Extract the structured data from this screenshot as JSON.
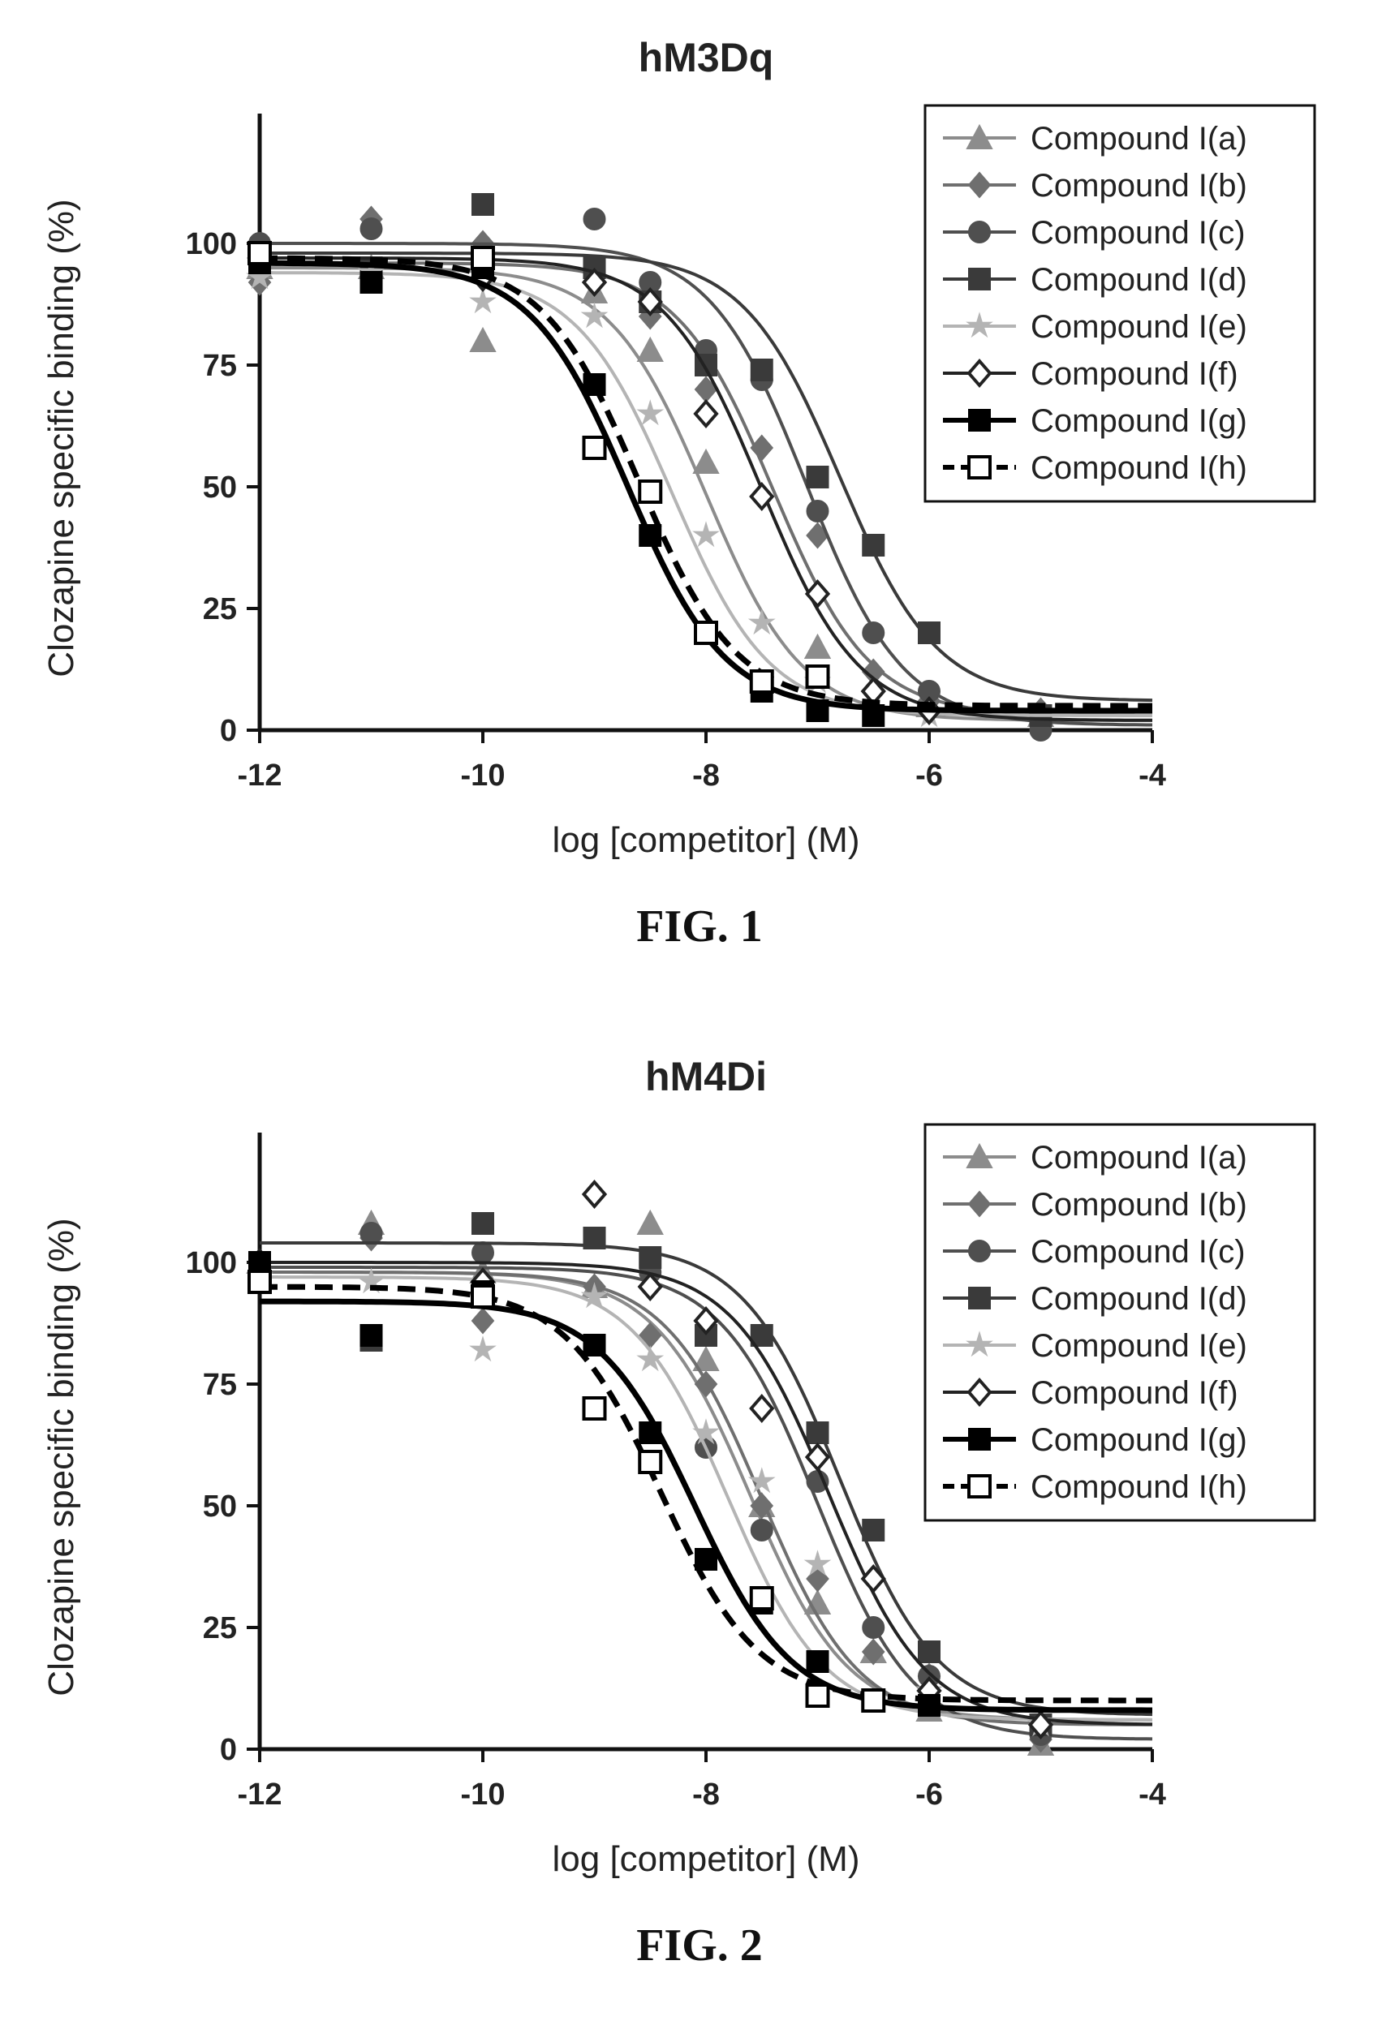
{
  "chart_data": [
    {
      "type": "line",
      "title": "hM3Dq",
      "xlabel": "log [competitor] (M)",
      "ylabel": "Clozapine specific binding (%)",
      "xlim": [
        -12,
        -4
      ],
      "ylim": [
        0,
        120
      ],
      "xticks": [
        -12,
        -10,
        -8,
        -6,
        -4
      ],
      "yticks": [
        0,
        25,
        50,
        75,
        100
      ],
      "grid": false,
      "legend": "top-right",
      "caption": "FIG. 1",
      "series": [
        {
          "name": "Compound I(a)",
          "color": "#8c8c8c",
          "marker": "triangle",
          "dash": "solid",
          "bottom": 2,
          "top": 95,
          "logIC50": -8.0,
          "hill": 1,
          "points": [
            [
              -12,
              95
            ],
            [
              -11,
              95
            ],
            [
              -10,
              80
            ],
            [
              -9,
              90
            ],
            [
              -8.5,
              78
            ],
            [
              -8,
              55
            ],
            [
              -7,
              17
            ],
            [
              -6,
              5
            ],
            [
              -5,
              3
            ]
          ]
        },
        {
          "name": "Compound I(b)",
          "color": "#6f6f6f",
          "marker": "diamond",
          "dash": "solid",
          "bottom": 3,
          "top": 96,
          "logIC50": -7.4,
          "hill": 1,
          "points": [
            [
              -12,
              92
            ],
            [
              -11,
              105
            ],
            [
              -10,
              100
            ],
            [
              -9,
              93
            ],
            [
              -8.5,
              85
            ],
            [
              -8,
              70
            ],
            [
              -7.5,
              58
            ],
            [
              -7,
              40
            ],
            [
              -6.5,
              12
            ],
            [
              -6,
              6
            ],
            [
              -5,
              4
            ]
          ]
        },
        {
          "name": "Compound I(c)",
          "color": "#4f4f4f",
          "marker": "circle",
          "dash": "solid",
          "bottom": 1,
          "top": 100,
          "logIC50": -7.1,
          "hill": 1,
          "points": [
            [
              -12,
              100
            ],
            [
              -11,
              103
            ],
            [
              -10,
              108
            ],
            [
              -9,
              105
            ],
            [
              -8.5,
              92
            ],
            [
              -8,
              78
            ],
            [
              -7.5,
              72
            ],
            [
              -7,
              45
            ],
            [
              -6.5,
              20
            ],
            [
              -6,
              8
            ],
            [
              -5,
              0
            ]
          ]
        },
        {
          "name": "Compound I(d)",
          "color": "#3a3a3a",
          "marker": "square",
          "dash": "solid",
          "bottom": 6,
          "top": 98,
          "logIC50": -6.8,
          "hill": 1,
          "points": [
            [
              -12,
              98
            ],
            [
              -11,
              95
            ],
            [
              -10,
              108
            ],
            [
              -9,
              95
            ],
            [
              -8.5,
              88
            ],
            [
              -8,
              75
            ],
            [
              -7.5,
              74
            ],
            [
              -7,
              52
            ],
            [
              -6.5,
              38
            ],
            [
              -6,
              20
            ],
            [
              -5,
              3
            ]
          ]
        },
        {
          "name": "Compound I(e)",
          "color": "#b4b4b4",
          "marker": "star",
          "dash": "solid",
          "bottom": 3,
          "top": 94,
          "logIC50": -8.3,
          "hill": 1,
          "points": [
            [
              -12,
              93
            ],
            [
              -11,
              94
            ],
            [
              -10,
              88
            ],
            [
              -9,
              85
            ],
            [
              -8.5,
              65
            ],
            [
              -8,
              40
            ],
            [
              -7.5,
              22
            ],
            [
              -7,
              10
            ],
            [
              -6,
              3
            ]
          ]
        },
        {
          "name": "Compound I(f)",
          "color": "#222222",
          "marker": "diamond-open",
          "dash": "solid",
          "bottom": 2,
          "top": 97,
          "logIC50": -7.5,
          "hill": 1,
          "points": [
            [
              -12,
              97
            ],
            [
              -10,
              93
            ],
            [
              -9,
              92
            ],
            [
              -8.5,
              88
            ],
            [
              -8,
              65
            ],
            [
              -7.5,
              48
            ],
            [
              -7,
              28
            ],
            [
              -6.5,
              8
            ],
            [
              -6,
              4
            ]
          ]
        },
        {
          "name": "Compound I(g)",
          "color": "#000000",
          "marker": "square",
          "dash": "solid",
          "bottom": 4,
          "top": 96,
          "logIC50": -8.7,
          "hill": 1,
          "points": [
            [
              -12,
              96
            ],
            [
              -11,
              92
            ],
            [
              -10,
              95
            ],
            [
              -9,
              71
            ],
            [
              -8.5,
              40
            ],
            [
              -8,
              20
            ],
            [
              -7.5,
              8
            ],
            [
              -7,
              4
            ],
            [
              -6.5,
              3
            ]
          ]
        },
        {
          "name": "Compound I(h)",
          "color": "#000000",
          "marker": "square-open",
          "dash": "dashed",
          "bottom": 5,
          "top": 97,
          "logIC50": -8.6,
          "hill": 1,
          "points": [
            [
              -12,
              98
            ],
            [
              -10,
              97
            ],
            [
              -9,
              58
            ],
            [
              -8.5,
              49
            ],
            [
              -8,
              20
            ],
            [
              -7.5,
              10
            ],
            [
              -7,
              11
            ]
          ]
        }
      ]
    },
    {
      "type": "line",
      "title": "hM4Di",
      "xlabel": "log [competitor] (M)",
      "ylabel": "Clozapine specific binding (%)",
      "xlim": [
        -12,
        -4
      ],
      "ylim": [
        0,
        120
      ],
      "xticks": [
        -12,
        -10,
        -8,
        -6,
        -4
      ],
      "yticks": [
        0,
        25,
        50,
        75,
        100
      ],
      "grid": false,
      "legend": "top-right",
      "caption": "FIG. 2",
      "series": [
        {
          "name": "Compound I(a)",
          "color": "#8c8c8c",
          "marker": "triangle",
          "dash": "solid",
          "bottom": 6,
          "top": 98,
          "logIC50": -7.6,
          "hill": 1,
          "points": [
            [
              -12,
              100
            ],
            [
              -11,
              108
            ],
            [
              -10,
              98
            ],
            [
              -9,
              95
            ],
            [
              -8.5,
              108
            ],
            [
              -8,
              80
            ],
            [
              -7.5,
              50
            ],
            [
              -7,
              30
            ],
            [
              -6.5,
              20
            ],
            [
              -6,
              8
            ],
            [
              -5,
              1
            ]
          ]
        },
        {
          "name": "Compound I(b)",
          "color": "#6f6f6f",
          "marker": "diamond",
          "dash": "solid",
          "bottom": 5,
          "top": 98,
          "logIC50": -7.5,
          "hill": 1,
          "points": [
            [
              -12,
              98
            ],
            [
              -11,
              105
            ],
            [
              -10,
              88
            ],
            [
              -9,
              95
            ],
            [
              -8.5,
              85
            ],
            [
              -8,
              75
            ],
            [
              -7.5,
              50
            ],
            [
              -7,
              35
            ],
            [
              -6.5,
              20
            ],
            [
              -6,
              15
            ],
            [
              -5,
              2
            ]
          ]
        },
        {
          "name": "Compound I(c)",
          "color": "#4f4f4f",
          "marker": "circle",
          "dash": "solid",
          "bottom": 2,
          "top": 99,
          "logIC50": -7.0,
          "hill": 1,
          "points": [
            [
              -12,
              100
            ],
            [
              -11,
              106
            ],
            [
              -10,
              102
            ],
            [
              -9,
              105
            ],
            [
              -8.5,
              98
            ],
            [
              -8,
              62
            ],
            [
              -7.5,
              45
            ],
            [
              -7,
              55
            ],
            [
              -6.5,
              25
            ],
            [
              -6,
              15
            ],
            [
              -5,
              3
            ]
          ]
        },
        {
          "name": "Compound I(d)",
          "color": "#3a3a3a",
          "marker": "square",
          "dash": "solid",
          "bottom": 7,
          "top": 104,
          "logIC50": -6.8,
          "hill": 1,
          "points": [
            [
              -12,
              100
            ],
            [
              -11,
              84
            ],
            [
              -10,
              108
            ],
            [
              -9,
              105
            ],
            [
              -8.5,
              101
            ],
            [
              -8,
              85
            ],
            [
              -7.5,
              85
            ],
            [
              -7,
              65
            ],
            [
              -6.5,
              45
            ],
            [
              -6,
              20
            ],
            [
              -5,
              5
            ]
          ]
        },
        {
          "name": "Compound I(e)",
          "color": "#b4b4b4",
          "marker": "star",
          "dash": "solid",
          "bottom": 6,
          "top": 97,
          "logIC50": -7.8,
          "hill": 1,
          "points": [
            [
              -12,
              97
            ],
            [
              -11,
              96
            ],
            [
              -10,
              82
            ],
            [
              -9,
              93
            ],
            [
              -8.5,
              80
            ],
            [
              -8,
              65
            ],
            [
              -7.5,
              55
            ],
            [
              -7,
              38
            ],
            [
              -6,
              12
            ],
            [
              -5,
              5
            ]
          ]
        },
        {
          "name": "Compound I(f)",
          "color": "#222222",
          "marker": "diamond-open",
          "dash": "solid",
          "bottom": 5,
          "top": 100,
          "logIC50": -6.9,
          "hill": 1,
          "points": [
            [
              -12,
              100
            ],
            [
              -10,
              96
            ],
            [
              -9,
              114
            ],
            [
              -8.5,
              95
            ],
            [
              -8,
              88
            ],
            [
              -7.5,
              70
            ],
            [
              -7,
              60
            ],
            [
              -6.5,
              35
            ],
            [
              -6,
              12
            ],
            [
              -5,
              5
            ]
          ]
        },
        {
          "name": "Compound I(g)",
          "color": "#000000",
          "marker": "square",
          "dash": "solid",
          "bottom": 8,
          "top": 92,
          "logIC50": -8.1,
          "hill": 1,
          "points": [
            [
              -12,
              100
            ],
            [
              -11,
              85
            ],
            [
              -10,
              94
            ],
            [
              -9,
              83
            ],
            [
              -8.5,
              65
            ],
            [
              -8,
              39
            ],
            [
              -7.5,
              30
            ],
            [
              -7,
              18
            ],
            [
              -6,
              9
            ]
          ]
        },
        {
          "name": "Compound I(h)",
          "color": "#000000",
          "marker": "square-open",
          "dash": "dashed",
          "bottom": 10,
          "top": 95,
          "logIC50": -8.4,
          "hill": 1,
          "points": [
            [
              -12,
              96
            ],
            [
              -10,
              93
            ],
            [
              -9,
              70
            ],
            [
              -8.5,
              59
            ],
            [
              -7.5,
              31
            ],
            [
              -7,
              11
            ],
            [
              -6.5,
              10
            ]
          ]
        }
      ]
    }
  ]
}
